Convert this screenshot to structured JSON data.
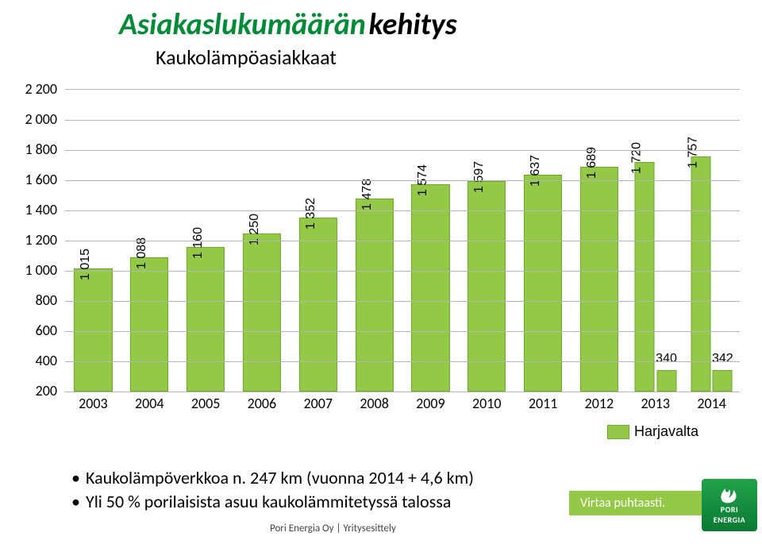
{
  "title": {
    "main": "Asiakaslukumäärän",
    "sub": "kehitys",
    "subtitle": "Kaukolämpöasiakkaat",
    "main_color": "#028b37",
    "sub_color": "#000000",
    "fontsize": 38,
    "subtitle_fontsize": 26
  },
  "chart": {
    "type": "bar",
    "categories": [
      "2003",
      "2004",
      "2005",
      "2006",
      "2007",
      "2008",
      "2009",
      "2010",
      "2011",
      "2012",
      "2013",
      "2014"
    ],
    "primary_values": [
      1015,
      1088,
      1160,
      1250,
      1352,
      1478,
      1574,
      1597,
      1637,
      1689,
      1720,
      1757
    ],
    "secondary_values": [
      null,
      null,
      null,
      null,
      null,
      null,
      null,
      null,
      null,
      null,
      340,
      342
    ],
    "secondary_name": "Harjavalta",
    "ylim": [
      200,
      2200
    ],
    "ytick_step": 200,
    "yticks": [
      "200",
      "400",
      "600",
      "800",
      "1 000",
      "1 200",
      "1 400",
      "1 600",
      "1 800",
      "2 000",
      "2 200"
    ],
    "axis_fontsize": 18,
    "value_fontsize": 16,
    "bar_color": "#94c947",
    "bar_border_color": "#6fa82f",
    "grid_color": "#b5b5b5",
    "background_color": "#ffffff",
    "bar_width": 0.68,
    "value_labels": [
      "1 015",
      "1 088",
      "1 160",
      "1 250",
      "1 352",
      "1 478",
      "1 574",
      "1 597",
      "1 637",
      "1 689",
      "1 720",
      "1 757"
    ],
    "secondary_labels": [
      "",
      "",
      "",
      "",
      "",
      "",
      "",
      "",
      "",
      "",
      "340",
      "342"
    ]
  },
  "bullets": {
    "line1": "Kaukolämpöverkkoa n. 247 km (vuonna 2014 + 4,6 km)",
    "line2": "Yli 50 % porilaisista asuu kaukolämmitetyssä talossa",
    "fontsize": 22
  },
  "footer": {
    "left": "Pori Energia Oy | Yritysesittely",
    "right": "Virtaa puhtaasti.",
    "logo_line1": "PORI",
    "logo_line2": "ENERGIA",
    "strip_color": "#94c947",
    "logo_bg": "#0f8f3e"
  }
}
